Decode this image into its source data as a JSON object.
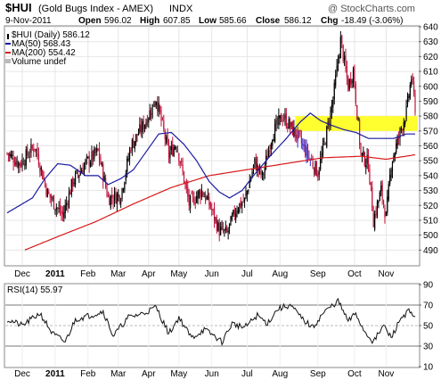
{
  "chart_data": [
    {
      "type": "candlestick",
      "symbol_title": "$HUI",
      "title_detail": "(Gold Bugs Index - AMEX)",
      "exchange_tag": "INDX",
      "watermark": "@ StockCharts.com",
      "quote": {
        "date": "9-Nov-2011",
        "open_label": "Open",
        "open": "596.02",
        "high_label": "High",
        "high": "607.85",
        "low_label": "Low",
        "low": "585.66",
        "close_label": "Close",
        "close": "586.12",
        "chg_label": "Chg",
        "chg": "-18.49 (-3.06%)"
      },
      "legend": [
        {
          "text": "$HUI (Daily) 586.12",
          "color": "#000000"
        },
        {
          "text": "MA(50) 568.43",
          "color": "#1a1aa0"
        },
        {
          "text": "MA(200) 554.42",
          "color": "#d81818"
        },
        {
          "text": "Volume undef",
          "color": "#999999"
        }
      ],
      "ylim": [
        480,
        640
      ],
      "yticks": [
        490,
        500,
        510,
        520,
        530,
        540,
        550,
        560,
        570,
        580,
        590,
        600,
        610,
        620,
        630,
        640
      ],
      "highlight_band": [
        570,
        580
      ],
      "highlight_color": "#ffff30",
      "grid": true,
      "x_labels": [
        "Dec",
        "2011",
        "Feb",
        "Mar",
        "Apr",
        "May",
        "Jun",
        "Jul",
        "Aug",
        "Sep",
        "Oct",
        "Nov"
      ],
      "colors": {
        "up": "#000000",
        "down": "#c0143c",
        "ma50": "#1a1aa0",
        "ma200": "#d81818",
        "recent": "#2828d0"
      },
      "close_anchors": [
        [
          0,
          555
        ],
        [
          10,
          548
        ],
        [
          22,
          560
        ],
        [
          32,
          528
        ],
        [
          44,
          513
        ],
        [
          52,
          536
        ],
        [
          62,
          548
        ],
        [
          72,
          556
        ],
        [
          80,
          525
        ],
        [
          90,
          527
        ],
        [
          98,
          560
        ],
        [
          110,
          577
        ],
        [
          118,
          592
        ],
        [
          128,
          554
        ],
        [
          134,
          562
        ],
        [
          144,
          521
        ],
        [
          154,
          530
        ],
        [
          160,
          521
        ],
        [
          168,
          503
        ],
        [
          174,
          501
        ],
        [
          182,
          519
        ],
        [
          188,
          523
        ],
        [
          196,
          549
        ],
        [
          202,
          539
        ],
        [
          210,
          568
        ],
        [
          218,
          580
        ],
        [
          230,
          566
        ],
        [
          238,
          554
        ],
        [
          246,
          542
        ],
        [
          252,
          565
        ],
        [
          258,
          591
        ],
        [
          264,
          631
        ],
        [
          270,
          600
        ],
        [
          274,
          611
        ],
        [
          280,
          554
        ],
        [
          286,
          548
        ],
        [
          290,
          510
        ],
        [
          296,
          530
        ],
        [
          300,
          512
        ],
        [
          304,
          548
        ],
        [
          310,
          566
        ],
        [
          316,
          583
        ],
        [
          320,
          606
        ],
        [
          323,
          586
        ]
      ],
      "ma50_anchors": [
        [
          0,
          515
        ],
        [
          20,
          525
        ],
        [
          30,
          538
        ],
        [
          40,
          548
        ],
        [
          50,
          547
        ],
        [
          62,
          540
        ],
        [
          72,
          540
        ],
        [
          80,
          534
        ],
        [
          90,
          538
        ],
        [
          100,
          544
        ],
        [
          110,
          556
        ],
        [
          120,
          568
        ],
        [
          130,
          569
        ],
        [
          140,
          561
        ],
        [
          150,
          550
        ],
        [
          160,
          536
        ],
        [
          168,
          529
        ],
        [
          176,
          525
        ],
        [
          186,
          530
        ],
        [
          196,
          541
        ],
        [
          208,
          553
        ],
        [
          220,
          564
        ],
        [
          232,
          576
        ],
        [
          240,
          582
        ],
        [
          248,
          577
        ],
        [
          256,
          574
        ],
        [
          266,
          571
        ],
        [
          276,
          569
        ],
        [
          286,
          565
        ],
        [
          296,
          565
        ],
        [
          306,
          565
        ],
        [
          316,
          568
        ],
        [
          323,
          568
        ]
      ],
      "ma200_anchors": [
        [
          14,
          490
        ],
        [
          40,
          499
        ],
        [
          70,
          509
        ],
        [
          100,
          521
        ],
        [
          130,
          532
        ],
        [
          160,
          540
        ],
        [
          190,
          544
        ],
        [
          220,
          548
        ],
        [
          250,
          552
        ],
        [
          280,
          553
        ],
        [
          300,
          551
        ],
        [
          323,
          554
        ]
      ]
    },
    {
      "type": "line",
      "label": "RSI(14) 55.97",
      "ylim": [
        10,
        90
      ],
      "yticks": [
        10,
        30,
        50,
        70,
        90
      ],
      "guide_lines": [
        30,
        50,
        70
      ],
      "grid": true,
      "x_labels": [
        "Dec",
        "2011",
        "Feb",
        "Mar",
        "Apr",
        "May",
        "Jun",
        "Jul",
        "Aug",
        "Sep",
        "Oct",
        "Nov"
      ],
      "rsi_anchors": [
        [
          0,
          56
        ],
        [
          12,
          50
        ],
        [
          26,
          62
        ],
        [
          36,
          42
        ],
        [
          46,
          34
        ],
        [
          54,
          56
        ],
        [
          66,
          60
        ],
        [
          76,
          64
        ],
        [
          84,
          40
        ],
        [
          96,
          58
        ],
        [
          108,
          62
        ],
        [
          118,
          68
        ],
        [
          128,
          42
        ],
        [
          136,
          58
        ],
        [
          146,
          38
        ],
        [
          156,
          46
        ],
        [
          164,
          40
        ],
        [
          170,
          34
        ],
        [
          178,
          52
        ],
        [
          188,
          48
        ],
        [
          198,
          60
        ],
        [
          206,
          52
        ],
        [
          214,
          66
        ],
        [
          224,
          70
        ],
        [
          234,
          56
        ],
        [
          242,
          48
        ],
        [
          250,
          62
        ],
        [
          262,
          74
        ],
        [
          270,
          54
        ],
        [
          276,
          62
        ],
        [
          282,
          46
        ],
        [
          290,
          34
        ],
        [
          298,
          50
        ],
        [
          304,
          38
        ],
        [
          312,
          58
        ],
        [
          318,
          64
        ],
        [
          323,
          56
        ]
      ]
    }
  ]
}
